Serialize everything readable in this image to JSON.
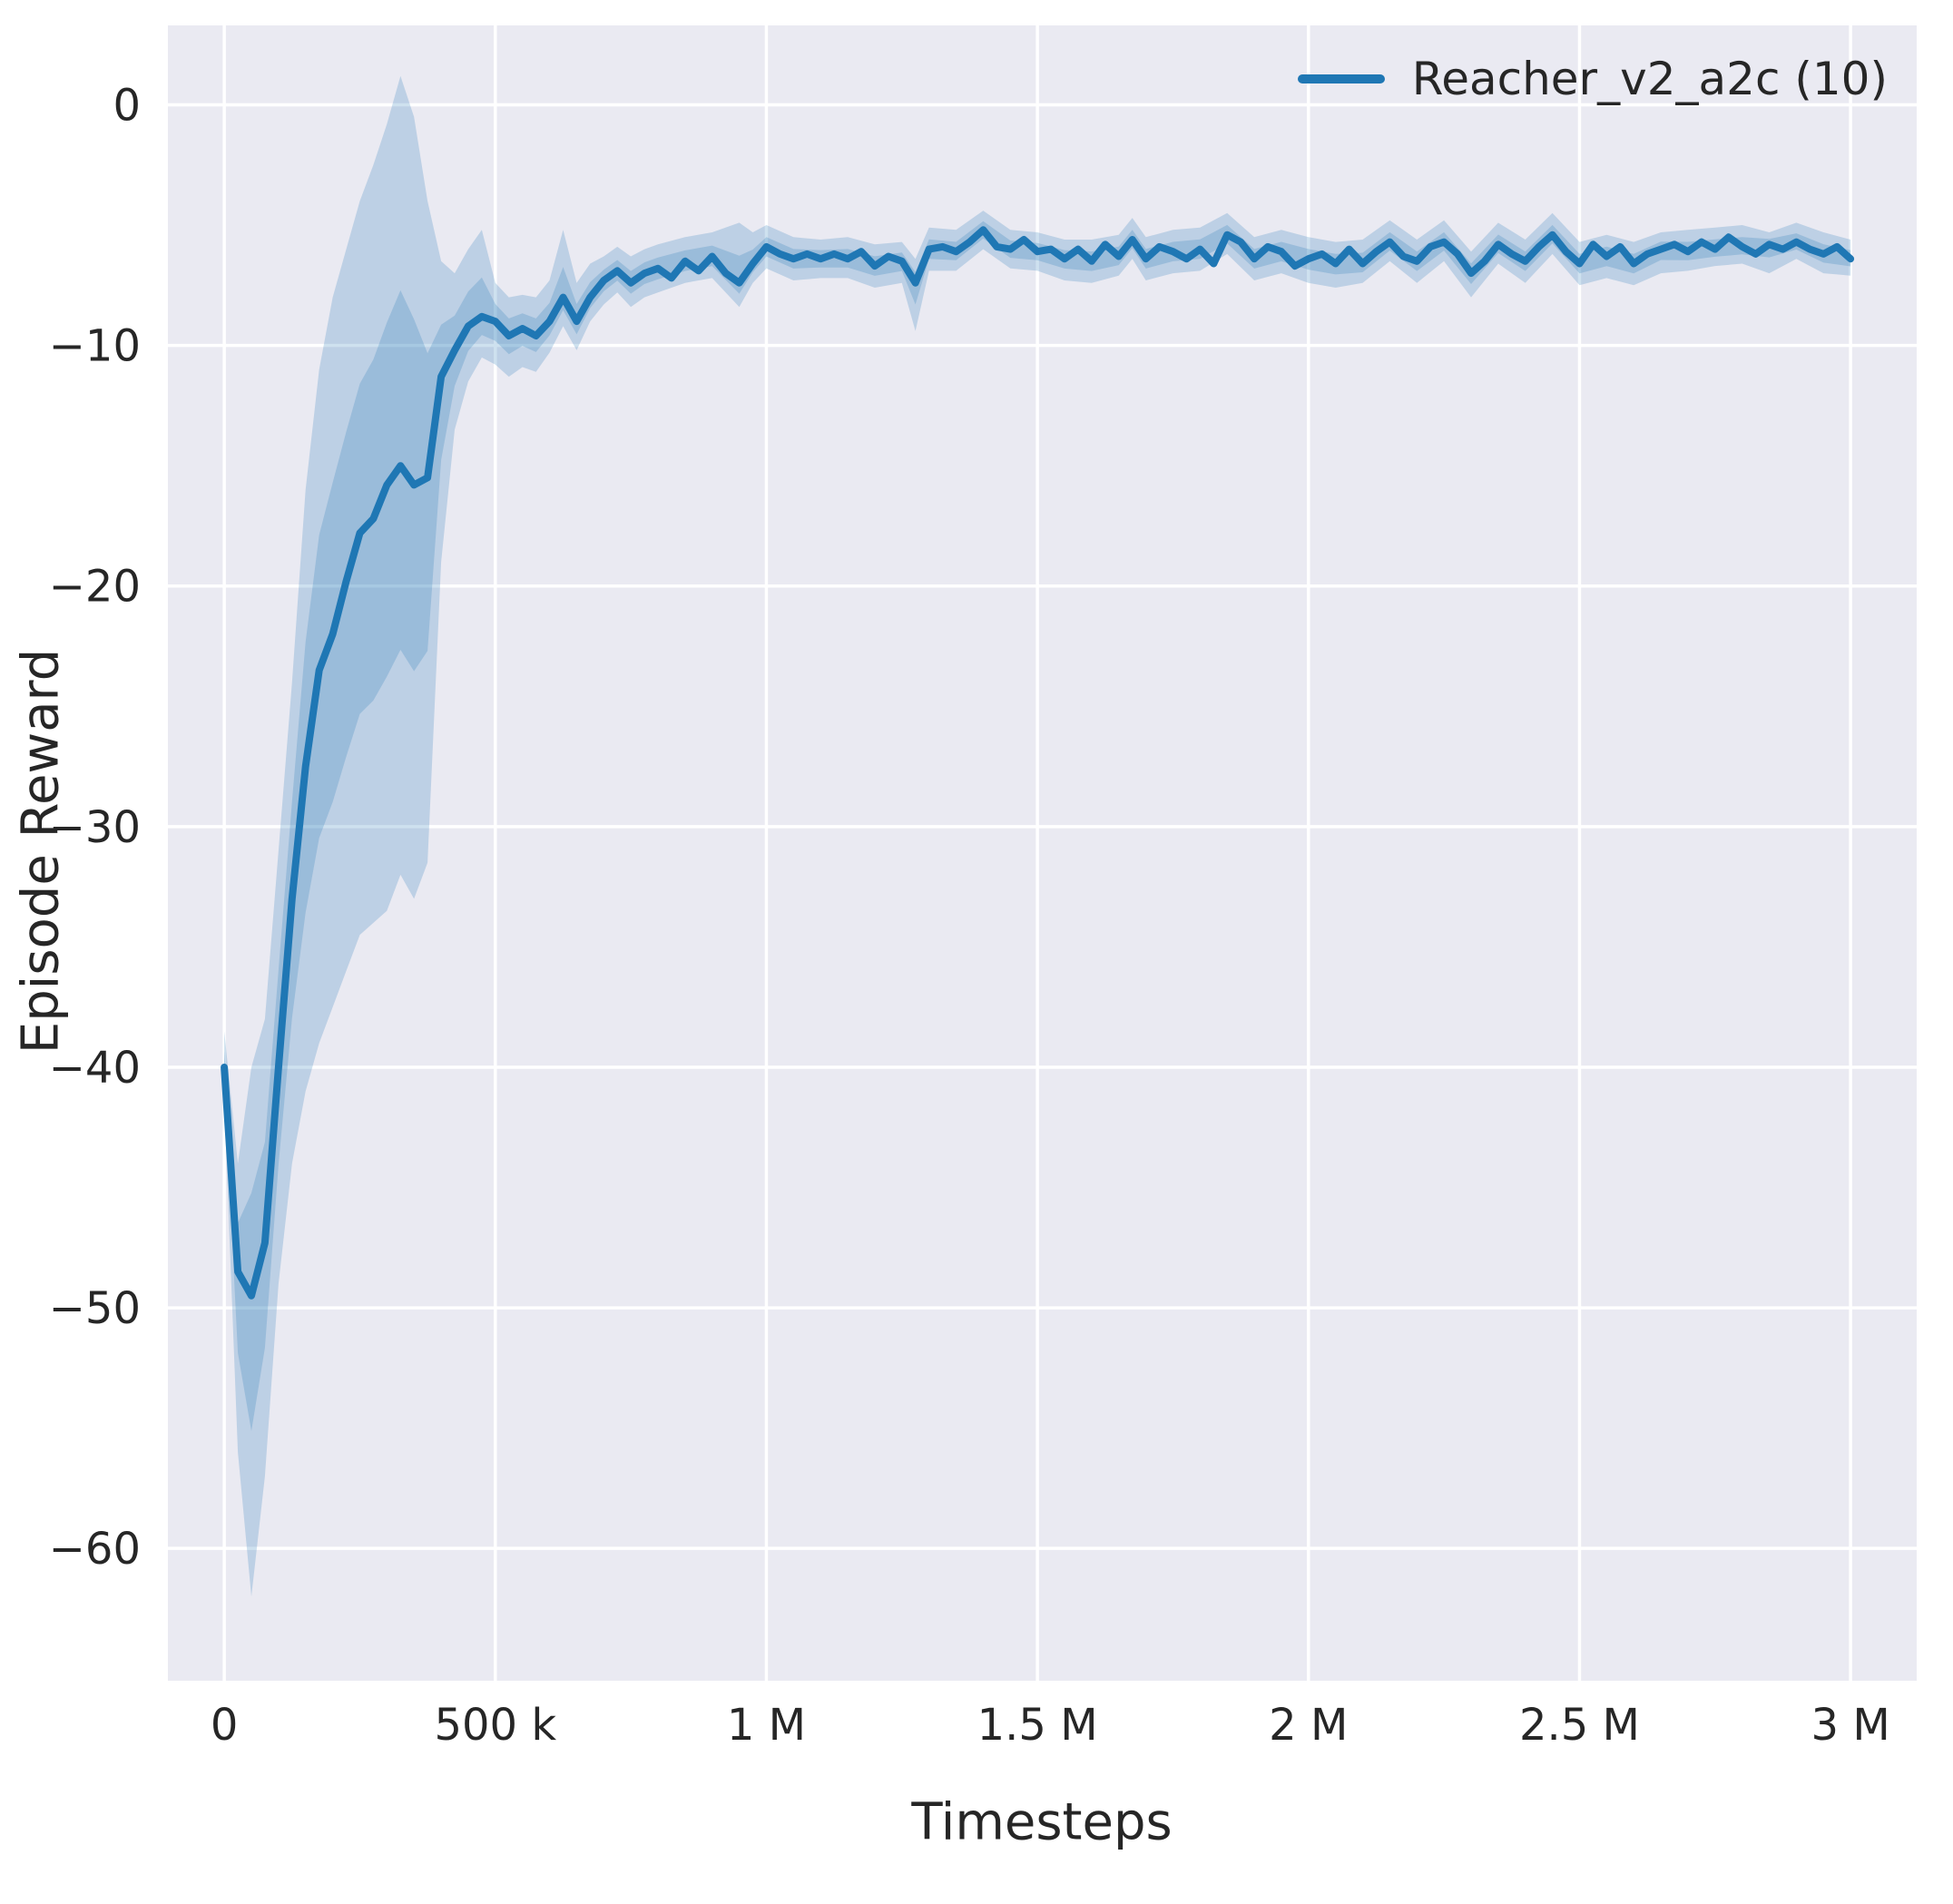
{
  "figure": {
    "xlabel": "Timesteps",
    "ylabel": "Episode Reward",
    "legend": {
      "label": "Reacher_v2_a2c (10)",
      "color": "#1f77b4"
    },
    "colors": {
      "axes_bg": "#eaeaf2",
      "grid": "#ffffff",
      "line": "#1f77b4",
      "band": "rgba(31,119,180,0.22)",
      "text": "#262626"
    }
  },
  "chart_data": {
    "type": "line",
    "title": "",
    "xlabel": "Timesteps",
    "ylabel": "Episode Reward",
    "grid": true,
    "legend_position": "upper right",
    "x_units": "timesteps (x values stored in thousands, multiply by x_scale)",
    "x_scale": 1000,
    "xlim": [
      -104000,
      3122000
    ],
    "ylim": [
      -65.5,
      3.3
    ],
    "x_ticks": {
      "values": [
        0,
        500000,
        1000000,
        1500000,
        2000000,
        2500000,
        3000000
      ],
      "labels": [
        "0",
        "500 k",
        "1 M",
        "1.5 M",
        "2 M",
        "2.5 M",
        "3 M"
      ]
    },
    "y_ticks": {
      "values": [
        0,
        -10,
        -20,
        -30,
        -40,
        -50,
        -60
      ],
      "labels": [
        "0",
        "−10",
        "−20",
        "−30",
        "−40",
        "−50",
        "−60"
      ]
    },
    "series": [
      {
        "name": "Reacher_v2_a2c (10)",
        "mean": [
          [
            0,
            -40.0
          ],
          [
            25,
            -48.5
          ],
          [
            50,
            -49.5
          ],
          [
            75,
            -47.3
          ],
          [
            100,
            -40.0
          ],
          [
            125,
            -33.0
          ],
          [
            150,
            -27.5
          ],
          [
            175,
            -23.5
          ],
          [
            200,
            -22.0
          ],
          [
            225,
            -19.8
          ],
          [
            250,
            -17.8
          ],
          [
            275,
            -17.2
          ],
          [
            300,
            -15.8
          ],
          [
            325,
            -15.0
          ],
          [
            350,
            -15.8
          ],
          [
            375,
            -15.5
          ],
          [
            400,
            -11.3
          ],
          [
            425,
            -10.2
          ],
          [
            450,
            -9.2
          ],
          [
            475,
            -8.8
          ],
          [
            500,
            -9.0
          ],
          [
            525,
            -9.6
          ],
          [
            550,
            -9.3
          ],
          [
            575,
            -9.6
          ],
          [
            600,
            -9.0
          ],
          [
            625,
            -8.0
          ],
          [
            650,
            -9.0
          ],
          [
            675,
            -8.0
          ],
          [
            700,
            -7.3
          ],
          [
            725,
            -6.9
          ],
          [
            750,
            -7.4
          ],
          [
            775,
            -7.0
          ],
          [
            800,
            -6.8
          ],
          [
            825,
            -7.2
          ],
          [
            850,
            -6.5
          ],
          [
            875,
            -6.9
          ],
          [
            900,
            -6.3
          ],
          [
            925,
            -7.0
          ],
          [
            950,
            -7.4
          ],
          [
            975,
            -6.6
          ],
          [
            1000,
            -5.9
          ],
          [
            1025,
            -6.2
          ],
          [
            1050,
            -6.4
          ],
          [
            1075,
            -6.2
          ],
          [
            1100,
            -6.4
          ],
          [
            1125,
            -6.2
          ],
          [
            1150,
            -6.4
          ],
          [
            1175,
            -6.1
          ],
          [
            1200,
            -6.7
          ],
          [
            1225,
            -6.3
          ],
          [
            1250,
            -6.5
          ],
          [
            1275,
            -7.4
          ],
          [
            1300,
            -6.0
          ],
          [
            1325,
            -5.9
          ],
          [
            1350,
            -6.1
          ],
          [
            1375,
            -5.7
          ],
          [
            1400,
            -5.2
          ],
          [
            1425,
            -5.9
          ],
          [
            1450,
            -6.0
          ],
          [
            1475,
            -5.6
          ],
          [
            1500,
            -6.1
          ],
          [
            1525,
            -6.0
          ],
          [
            1550,
            -6.4
          ],
          [
            1575,
            -6.0
          ],
          [
            1600,
            -6.5
          ],
          [
            1625,
            -5.8
          ],
          [
            1650,
            -6.3
          ],
          [
            1675,
            -5.6
          ],
          [
            1700,
            -6.4
          ],
          [
            1725,
            -5.9
          ],
          [
            1750,
            -6.1
          ],
          [
            1775,
            -6.4
          ],
          [
            1800,
            -6.0
          ],
          [
            1825,
            -6.6
          ],
          [
            1850,
            -5.4
          ],
          [
            1875,
            -5.7
          ],
          [
            1900,
            -6.4
          ],
          [
            1925,
            -5.9
          ],
          [
            1950,
            -6.1
          ],
          [
            1975,
            -6.7
          ],
          [
            2000,
            -6.4
          ],
          [
            2025,
            -6.2
          ],
          [
            2050,
            -6.6
          ],
          [
            2075,
            -6.0
          ],
          [
            2100,
            -6.6
          ],
          [
            2125,
            -6.1
          ],
          [
            2150,
            -5.7
          ],
          [
            2175,
            -6.3
          ],
          [
            2200,
            -6.5
          ],
          [
            2225,
            -5.9
          ],
          [
            2250,
            -5.7
          ],
          [
            2275,
            -6.2
          ],
          [
            2300,
            -7.0
          ],
          [
            2325,
            -6.5
          ],
          [
            2350,
            -5.8
          ],
          [
            2375,
            -6.2
          ],
          [
            2400,
            -6.5
          ],
          [
            2425,
            -5.9
          ],
          [
            2450,
            -5.4
          ],
          [
            2475,
            -6.1
          ],
          [
            2500,
            -6.6
          ],
          [
            2525,
            -5.8
          ],
          [
            2550,
            -6.3
          ],
          [
            2575,
            -5.9
          ],
          [
            2600,
            -6.6
          ],
          [
            2625,
            -6.2
          ],
          [
            2650,
            -6.0
          ],
          [
            2675,
            -5.8
          ],
          [
            2700,
            -6.1
          ],
          [
            2725,
            -5.7
          ],
          [
            2750,
            -6.0
          ],
          [
            2775,
            -5.5
          ],
          [
            2800,
            -5.9
          ],
          [
            2825,
            -6.2
          ],
          [
            2850,
            -5.8
          ],
          [
            2875,
            -6.0
          ],
          [
            2900,
            -5.7
          ],
          [
            2925,
            -6.0
          ],
          [
            2950,
            -6.2
          ],
          [
            2975,
            -5.9
          ],
          [
            3000,
            -6.4
          ]
        ],
        "band": [
          [
            0,
            -41.5,
            -38.5
          ],
          [
            25,
            -56.0,
            -44.0
          ],
          [
            50,
            -62.0,
            -40.0
          ],
          [
            75,
            -57.0,
            -38.0
          ],
          [
            100,
            -49.0,
            -31.0
          ],
          [
            125,
            -44.0,
            -24.0
          ],
          [
            150,
            -41.0,
            -16.0
          ],
          [
            175,
            -39.0,
            -11.0
          ],
          [
            200,
            -37.5,
            -8.0
          ],
          [
            225,
            -36.0,
            -6.0
          ],
          [
            250,
            -34.5,
            -4.0
          ],
          [
            275,
            -34.0,
            -2.5
          ],
          [
            300,
            -33.5,
            -0.8
          ],
          [
            325,
            -32.0,
            1.2
          ],
          [
            350,
            -33.0,
            -0.5
          ],
          [
            375,
            -31.5,
            -4.0
          ],
          [
            400,
            -19.0,
            -6.5
          ],
          [
            425,
            -13.5,
            -7.0
          ],
          [
            450,
            -11.5,
            -6.0
          ],
          [
            475,
            -10.5,
            -5.2
          ],
          [
            500,
            -10.8,
            -7.4
          ],
          [
            525,
            -11.3,
            -8.0
          ],
          [
            550,
            -10.9,
            -7.9
          ],
          [
            575,
            -11.1,
            -8.0
          ],
          [
            600,
            -10.3,
            -7.3
          ],
          [
            625,
            -9.2,
            -5.2
          ],
          [
            650,
            -10.2,
            -7.4
          ],
          [
            675,
            -9.0,
            -6.6
          ],
          [
            700,
            -8.3,
            -6.3
          ],
          [
            725,
            -7.8,
            -5.9
          ],
          [
            750,
            -8.4,
            -6.3
          ],
          [
            775,
            -8.0,
            -6.0
          ],
          [
            800,
            -7.8,
            -5.8
          ],
          [
            850,
            -7.4,
            -5.5
          ],
          [
            900,
            -7.2,
            -5.3
          ],
          [
            950,
            -8.4,
            -4.9
          ],
          [
            975,
            -7.4,
            -5.3
          ],
          [
            1000,
            -6.8,
            -5.0
          ],
          [
            1050,
            -7.3,
            -5.5
          ],
          [
            1100,
            -7.2,
            -5.6
          ],
          [
            1150,
            -7.2,
            -5.5
          ],
          [
            1200,
            -7.6,
            -5.8
          ],
          [
            1250,
            -7.4,
            -5.7
          ],
          [
            1275,
            -9.4,
            -6.4
          ],
          [
            1300,
            -6.9,
            -5.1
          ],
          [
            1350,
            -6.9,
            -5.2
          ],
          [
            1400,
            -6.0,
            -4.4
          ],
          [
            1450,
            -6.8,
            -5.2
          ],
          [
            1500,
            -6.9,
            -5.3
          ],
          [
            1550,
            -7.3,
            -5.6
          ],
          [
            1600,
            -7.4,
            -5.6
          ],
          [
            1650,
            -7.1,
            -5.4
          ],
          [
            1675,
            -6.4,
            -4.7
          ],
          [
            1700,
            -7.3,
            -5.5
          ],
          [
            1750,
            -7.0,
            -5.2
          ],
          [
            1800,
            -6.9,
            -5.1
          ],
          [
            1850,
            -6.2,
            -4.5
          ],
          [
            1900,
            -7.3,
            -5.5
          ],
          [
            1950,
            -7.0,
            -5.2
          ],
          [
            2000,
            -7.4,
            -5.5
          ],
          [
            2050,
            -7.6,
            -5.7
          ],
          [
            2100,
            -7.4,
            -5.6
          ],
          [
            2150,
            -6.5,
            -4.8
          ],
          [
            2200,
            -7.4,
            -5.6
          ],
          [
            2250,
            -6.5,
            -4.8
          ],
          [
            2300,
            -8.0,
            -6.1
          ],
          [
            2350,
            -6.6,
            -4.9
          ],
          [
            2400,
            -7.4,
            -5.6
          ],
          [
            2450,
            -6.2,
            -4.5
          ],
          [
            2500,
            -7.5,
            -5.7
          ],
          [
            2550,
            -7.2,
            -5.4
          ],
          [
            2600,
            -7.5,
            -5.7
          ],
          [
            2650,
            -7.0,
            -5.3
          ],
          [
            2700,
            -6.9,
            -5.2
          ],
          [
            2750,
            -6.7,
            -5.1
          ],
          [
            2800,
            -6.6,
            -5.0
          ],
          [
            2850,
            -7.0,
            -5.3
          ],
          [
            2900,
            -6.4,
            -4.9
          ],
          [
            2950,
            -7.0,
            -5.3
          ],
          [
            3000,
            -7.1,
            -5.6
          ]
        ]
      }
    ]
  }
}
